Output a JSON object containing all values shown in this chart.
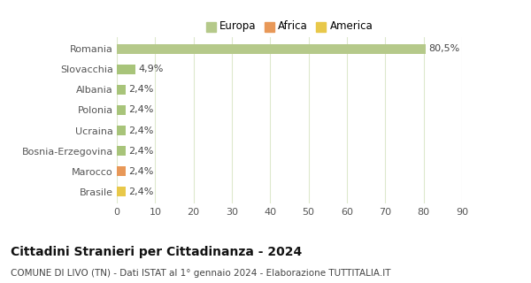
{
  "categories": [
    "Brasile",
    "Marocco",
    "Bosnia-Erzegovina",
    "Ucraina",
    "Polonia",
    "Albania",
    "Slovacchia",
    "Romania"
  ],
  "values": [
    2.4,
    2.4,
    2.4,
    2.4,
    2.4,
    2.4,
    4.9,
    80.5
  ],
  "labels": [
    "2,4%",
    "2,4%",
    "2,4%",
    "2,4%",
    "2,4%",
    "2,4%",
    "4,9%",
    "80,5%"
  ],
  "colors": [
    "#e8c84a",
    "#e89858",
    "#a8c47a",
    "#a8c47a",
    "#a8c47a",
    "#a8c47a",
    "#a8c47a",
    "#b5c98a"
  ],
  "legend": [
    {
      "label": "Europa",
      "color": "#b5c98a"
    },
    {
      "label": "Africa",
      "color": "#e89858"
    },
    {
      "label": "America",
      "color": "#e8c84a"
    }
  ],
  "title": "Cittadini Stranieri per Cittadinanza - 2024",
  "subtitle": "COMUNE DI LIVO (TN) - Dati ISTAT al 1° gennaio 2024 - Elaborazione TUTTITALIA.IT",
  "xlim": [
    0,
    90
  ],
  "xticks": [
    0,
    10,
    20,
    30,
    40,
    50,
    60,
    70,
    80,
    90
  ],
  "background_color": "#ffffff",
  "grid_color": "#dde8cc",
  "bar_height": 0.5,
  "title_fontsize": 10,
  "subtitle_fontsize": 7.5,
  "label_fontsize": 8,
  "tick_fontsize": 8,
  "legend_fontsize": 8.5
}
